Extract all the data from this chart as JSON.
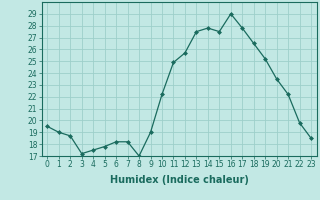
{
  "x": [
    0,
    1,
    2,
    3,
    4,
    5,
    6,
    7,
    8,
    9,
    10,
    11,
    12,
    13,
    14,
    15,
    16,
    17,
    18,
    19,
    20,
    21,
    22,
    23
  ],
  "y": [
    19.5,
    19.0,
    18.7,
    17.2,
    17.5,
    17.8,
    18.2,
    18.2,
    17.0,
    19.0,
    22.2,
    24.9,
    25.7,
    27.5,
    27.8,
    27.5,
    29.0,
    27.8,
    26.5,
    25.2,
    23.5,
    22.2,
    19.8,
    18.5
  ],
  "line_color": "#1a6b5e",
  "marker": "D",
  "marker_size": 2.0,
  "bg_color": "#c2e8e4",
  "grid_color": "#9ecfca",
  "xlabel": "Humidex (Indice chaleur)",
  "ylim": [
    17,
    30
  ],
  "xlim": [
    -0.5,
    23.5
  ],
  "yticks": [
    17,
    18,
    19,
    20,
    21,
    22,
    23,
    24,
    25,
    26,
    27,
    28,
    29
  ],
  "xtick_labels": [
    "0",
    "1",
    "2",
    "3",
    "4",
    "5",
    "6",
    "7",
    "8",
    "9",
    "10",
    "11",
    "12",
    "13",
    "14",
    "15",
    "16",
    "17",
    "18",
    "19",
    "20",
    "21",
    "22",
    "23"
  ],
  "tick_color": "#1a6b5e",
  "label_color": "#1a6b5e",
  "tick_fontsize": 5.5,
  "xlabel_fontsize": 7.0,
  "linewidth": 0.9
}
